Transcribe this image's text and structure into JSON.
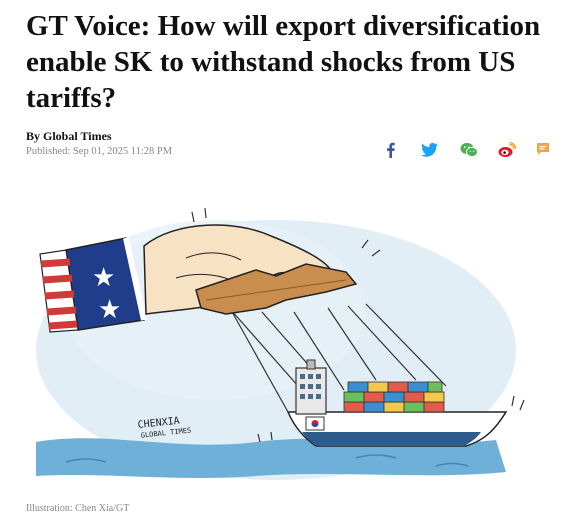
{
  "article": {
    "title": "GT Voice: How will export diversification enable SK to withstand shocks from US tariffs?",
    "byline": "By Global Times",
    "published": "Published: Sep 01, 2025 11:28 PM",
    "caption": "Illustration: Chen Xia/GT"
  },
  "share": {
    "icons": [
      "facebook-icon",
      "twitter-icon",
      "wechat-icon",
      "weibo-icon",
      "comment-icon"
    ],
    "colors": {
      "facebook": "#3b5998",
      "twitter": "#1da1f2",
      "wechat": "#4caf50",
      "weibo": "#e6162d",
      "comment": "#f4a340"
    }
  },
  "illustration": {
    "signature": "CHENXIA GLOBAL TIMES"
  }
}
